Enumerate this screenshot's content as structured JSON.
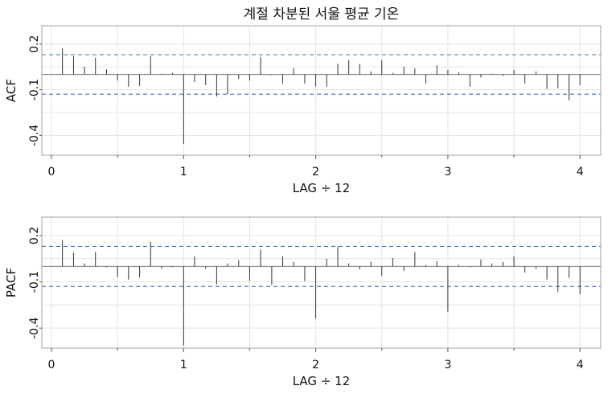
{
  "colors": {
    "spike": "#333333",
    "conf_limit": "#3b73c4",
    "zero_line": "#7a7a7a",
    "grid": "#e4e4e4",
    "frame": "#a0a0a0"
  },
  "chart_data": [
    {
      "type": "bar",
      "title": "계절 차분된 서울 평균 기온",
      "xlabel": "LAG ÷ 12",
      "ylabel": "ACF",
      "x": [
        0.083,
        0.167,
        0.25,
        0.333,
        0.417,
        0.5,
        0.583,
        0.667,
        0.75,
        0.833,
        0.917,
        1,
        1.083,
        1.167,
        1.25,
        1.333,
        1.417,
        1.5,
        1.583,
        1.667,
        1.75,
        1.833,
        1.917,
        2,
        2.083,
        2.167,
        2.25,
        2.333,
        2.417,
        2.5,
        2.583,
        2.667,
        2.75,
        2.833,
        2.917,
        3,
        3.083,
        3.167,
        3.25,
        3.333,
        3.417,
        3.5,
        3.583,
        3.667,
        3.75,
        3.833,
        3.917,
        4
      ],
      "values": [
        0.17,
        0.12,
        0.05,
        0.11,
        0.035,
        -0.04,
        -0.08,
        -0.075,
        0.12,
        0.005,
        0.01,
        -0.456,
        -0.05,
        -0.07,
        -0.145,
        -0.13,
        -0.03,
        -0.04,
        0.115,
        -0.005,
        -0.06,
        0.04,
        -0.06,
        -0.08,
        -0.08,
        0.07,
        0.095,
        0.07,
        0.02,
        0.095,
        0.01,
        0.05,
        0.04,
        -0.06,
        0.06,
        0.03,
        0.015,
        -0.08,
        -0.02,
        0.005,
        -0.01,
        0.03,
        -0.06,
        0.02,
        -0.095,
        -0.09,
        -0.17,
        -0.07
      ],
      "xlim": [
        -0.073,
        4.157
      ],
      "ylim": [
        -0.53,
        0.32
      ],
      "xticks": [
        0,
        1,
        2,
        3,
        4
      ],
      "yticks": [
        0.2,
        -0.1,
        -0.4
      ],
      "conf_limits": [
        -0.13,
        0.13
      ],
      "grid": true
    },
    {
      "type": "bar",
      "xlabel": "LAG ÷ 12",
      "ylabel": "PACF",
      "x": [
        0.083,
        0.167,
        0.25,
        0.333,
        0.417,
        0.5,
        0.583,
        0.667,
        0.75,
        0.833,
        0.917,
        1,
        1.083,
        1.167,
        1.25,
        1.333,
        1.417,
        1.5,
        1.583,
        1.667,
        1.75,
        1.833,
        1.917,
        2,
        2.083,
        2.167,
        2.25,
        2.333,
        2.417,
        2.5,
        2.583,
        2.667,
        2.75,
        2.833,
        2.917,
        3,
        3.083,
        3.167,
        3.25,
        3.333,
        3.417,
        3.5,
        3.583,
        3.667,
        3.75,
        3.833,
        3.917,
        4
      ],
      "values": [
        0.17,
        0.09,
        0.02,
        0.095,
        -0.005,
        -0.07,
        -0.085,
        -0.07,
        0.16,
        -0.015,
        -0.005,
        -0.512,
        0.065,
        -0.015,
        -0.116,
        0.02,
        0.04,
        -0.095,
        0.11,
        -0.12,
        0.065,
        0.03,
        -0.095,
        -0.338,
        0.05,
        0.13,
        0.02,
        -0.02,
        0.03,
        -0.06,
        0.055,
        -0.03,
        0.095,
        0.01,
        0.035,
        -0.296,
        0.01,
        -0.005,
        0.045,
        0.02,
        0.03,
        0.065,
        -0.04,
        -0.015,
        -0.085,
        -0.164,
        -0.075,
        -0.18
      ],
      "xlim": [
        -0.073,
        4.157
      ],
      "ylim": [
        -0.53,
        0.32
      ],
      "xticks": [
        0,
        1,
        2,
        3,
        4
      ],
      "yticks": [
        0.2,
        -0.1,
        -0.4
      ],
      "conf_limits": [
        -0.13,
        0.13
      ],
      "grid": true
    }
  ]
}
